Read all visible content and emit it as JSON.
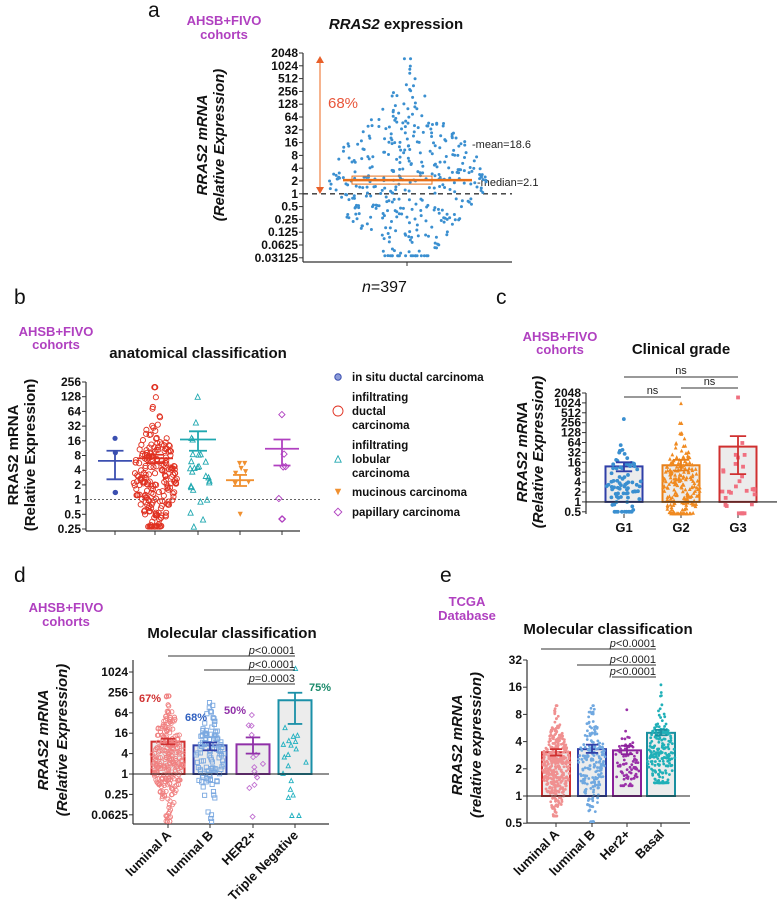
{
  "colors": {
    "cohort_label": "#b040c0",
    "bar_fill": "#ececec"
  },
  "chart_data": [
    {
      "panel": "a",
      "type": "scatter",
      "cohort": [
        "AHSB+FIVO",
        "cohorts"
      ],
      "title_italic": "RRAS2",
      "title_rest": " expression",
      "ylabel": [
        "RRAS2 mRNA",
        "(Relative Expression)"
      ],
      "yscale": "log2",
      "yticks": [
        "2048",
        "1024",
        "512",
        "256",
        "128",
        "64",
        "32",
        "16",
        "8",
        "4",
        "2",
        "1",
        "0.5",
        "0.25",
        "0.125",
        "0.0625",
        "0.03125"
      ],
      "ylim": [
        0.03125,
        2048
      ],
      "reference_line": 1,
      "point_color": "#3a8fd0",
      "accent": "#e8701a",
      "groups": [
        {
          "name": "",
          "n": 397,
          "mean": 18.6,
          "median": 2.1,
          "range": [
            0.035,
            1500
          ]
        }
      ],
      "percent_label": "68%",
      "mean_label": "-mean=18.6",
      "median_label": "-median=2.1",
      "n_italic": "n",
      "n_rest": "=397"
    },
    {
      "panel": "b",
      "type": "scatter",
      "cohort": [
        "AHSB+FIVO",
        "cohorts"
      ],
      "title": "anatomical classification",
      "ylabel": [
        "RRAS2 mRNA",
        "(Relative Expression)"
      ],
      "yscale": "log2",
      "yticks": [
        "256",
        "128",
        "64",
        "32",
        "16",
        "8",
        "4",
        "2",
        "1",
        "0.5",
        "0.25"
      ],
      "ylim": [
        0.25,
        256
      ],
      "reference_line": 1,
      "legend_position": "right",
      "groups": [
        {
          "name": "in situ ductal carcinoma",
          "legend_lines": [
            "in situ ductal carcinoma"
          ],
          "marker": "circle-filled",
          "color": "#3b4fb0",
          "mean": 6.2,
          "sem": [
            2.6,
            10
          ],
          "range": [
            1.4,
            18
          ]
        },
        {
          "name": "infiltrating ductal carcinoma",
          "legend_lines": [
            "infiltrating",
            "ductal",
            "carcinoma"
          ],
          "marker": "circle-open",
          "color": "#e03020",
          "mean": 7,
          "sem": [
            5.6,
            8.3
          ],
          "range": [
            0.28,
            200
          ]
        },
        {
          "name": "infiltrating lobular carcinoma",
          "legend_lines": [
            "infiltrating",
            "lobular",
            "carcinoma"
          ],
          "marker": "triangle-open",
          "color": "#20a8b0",
          "mean": 17,
          "sem": [
            10,
            25
          ],
          "range": [
            0.28,
            128
          ]
        },
        {
          "name": "mucinous carcinoma",
          "legend_lines": [
            "mucinous carcinoma"
          ],
          "marker": "triangle-down-filled",
          "color": "#f09030",
          "mean": 2.5,
          "sem": [
            1.9,
            3.2
          ],
          "range": [
            0.5,
            5.5
          ]
        },
        {
          "name": "papillary carcinoma",
          "legend_lines": [
            "papillary carcinoma"
          ],
          "marker": "diamond-open",
          "color": "#b040c0",
          "mean": 11,
          "sem": [
            5,
            17
          ],
          "range": [
            0.4,
            55
          ]
        }
      ]
    },
    {
      "panel": "c",
      "type": "bar",
      "cohort": [
        "AHSB+FIVO",
        "cohorts"
      ],
      "title": "Clinical grade",
      "ylabel": [
        "RRAS2 mRNA",
        "(Relative Expression)"
      ],
      "yscale": "log2",
      "yticks": [
        "2048",
        "1024",
        "512",
        "256",
        "128",
        "64",
        "32",
        "16",
        "8",
        "4",
        "2",
        "1",
        "0.5"
      ],
      "ylim": [
        0.5,
        2048
      ],
      "categories": [
        "G1",
        "G2",
        "G3"
      ],
      "groups": [
        {
          "name": "G1",
          "color": "#2f3fa8",
          "point_color": "#3a8fd0",
          "marker": "circle-filled",
          "mean": 12,
          "sem": [
            8.5,
            16
          ],
          "range": [
            0.5,
            330
          ]
        },
        {
          "name": "G2",
          "color": "#e8801a",
          "point_color": "#f08a20",
          "marker": "triangle-filled",
          "mean": 13,
          "sem": [
            9,
            19
          ],
          "range": [
            0.45,
            1000
          ]
        },
        {
          "name": "G3",
          "color": "#d03030",
          "point_color": "#f07080",
          "marker": "square-filled",
          "mean": 48,
          "sem": [
            7,
            100
          ],
          "range": [
            0.45,
            1500
          ]
        }
      ],
      "comparisons": [
        {
          "groups": [
            "G1",
            "G3"
          ],
          "label": "ns"
        },
        {
          "groups": [
            "G2",
            "G3"
          ],
          "label": "ns"
        },
        {
          "groups": [
            "G1",
            "G2"
          ],
          "label": "ns"
        }
      ]
    },
    {
      "panel": "d",
      "type": "bar",
      "cohort": [
        "AHSB+FIVO",
        "cohorts"
      ],
      "title": "Molecular classification",
      "ylabel": [
        "RRAS2 mRNA",
        "(Relative Expression)"
      ],
      "yscale": "log2",
      "yticks": [
        "1024",
        "256",
        "64",
        "16",
        "4",
        "1",
        "0.25",
        "0.0625"
      ],
      "ylim": [
        0.035,
        2048
      ],
      "categories": [
        "luminal A",
        "luminal B",
        "HER2+",
        "Triple Negative"
      ],
      "groups": [
        {
          "name": "luminal A",
          "color": "#d03030",
          "point_color": "#f08080",
          "marker": "circle-open",
          "mean": 9,
          "sem": [
            7.5,
            11
          ],
          "range": [
            0.04,
            200
          ],
          "percent": "67%",
          "percent_color": "#d03030"
        },
        {
          "name": "luminal B",
          "color": "#3040a8",
          "point_color": "#7aa8e0",
          "marker": "square-open",
          "mean": 7,
          "sem": [
            5,
            8.5
          ],
          "range": [
            0.04,
            128
          ],
          "percent": "68%",
          "percent_color": "#3060c0"
        },
        {
          "name": "HER2+",
          "color": "#9030a8",
          "point_color": "#c070d0",
          "marker": "diamond-open",
          "mean": 7.5,
          "sem": [
            4,
            12
          ],
          "range": [
            0.055,
            55
          ],
          "percent": "50%",
          "percent_color": "#9030a8"
        },
        {
          "name": "Triple Negative",
          "color": "#1a90a8",
          "point_color": "#20b0c0",
          "marker": "triangle-open",
          "mean": 150,
          "sem": [
            30,
            250
          ],
          "range": [
            0.06,
            1300
          ],
          "percent": "75%",
          "percent_color": "#1a8a6a"
        }
      ],
      "comparisons": [
        {
          "groups": [
            "luminal A",
            "Triple Negative"
          ],
          "p_italic": "p",
          "p_rest": "<0.0001"
        },
        {
          "groups": [
            "luminal B",
            "Triple Negative"
          ],
          "p_italic": "p",
          "p_rest": "<0.0001"
        },
        {
          "groups": [
            "HER2+",
            "Triple Negative"
          ],
          "p_italic": "p",
          "p_rest": "=0.0003"
        }
      ]
    },
    {
      "panel": "e",
      "type": "bar",
      "cohort": [
        "TCGA",
        "Database"
      ],
      "title": "Molecular classification",
      "ylabel": [
        "RRAS2 mRNA",
        "(relative expression)"
      ],
      "yscale": "log2",
      "yticks": [
        "32",
        "16",
        "8",
        "4",
        "2",
        "1",
        "0.5"
      ],
      "ylim": [
        0.5,
        32
      ],
      "categories": [
        "luminal A",
        "luminal B",
        "Her2+",
        "Basal"
      ],
      "groups": [
        {
          "name": "luminal A",
          "color": "#d03030",
          "point_color": "#f09090",
          "marker": "circle-filled",
          "mean": 3.05,
          "sem": [
            2.8,
            3.3
          ],
          "range": [
            0.6,
            10
          ]
        },
        {
          "name": "luminal B",
          "color": "#3040a8",
          "point_color": "#70a8e0",
          "marker": "circle-filled",
          "mean": 3.3,
          "sem": [
            3.0,
            3.7
          ],
          "range": [
            0.52,
            10
          ]
        },
        {
          "name": "Her2+",
          "color": "#8a209a",
          "point_color": "#9a30a8",
          "marker": "circle-filled",
          "mean": 3.2,
          "sem": [
            2.9,
            3.6
          ],
          "range": [
            1.3,
            9
          ]
        },
        {
          "name": "Basal",
          "color": "#1a90a0",
          "point_color": "#20b0b8",
          "marker": "circle-filled",
          "mean": 5,
          "sem": [
            4.7,
            5.4
          ],
          "range": [
            1.4,
            17
          ]
        }
      ],
      "comparisons": [
        {
          "groups": [
            "luminal A",
            "Basal"
          ],
          "p_italic": "p",
          "p_rest": "<0.0001"
        },
        {
          "groups": [
            "luminal B",
            "Basal"
          ],
          "p_italic": "p",
          "p_rest": "<0.0001"
        },
        {
          "groups": [
            "Her2+",
            "Basal"
          ],
          "p_italic": "p",
          "p_rest": "<0.0001"
        }
      ]
    }
  ]
}
